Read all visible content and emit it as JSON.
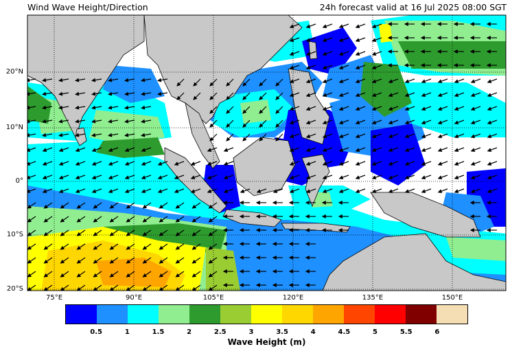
{
  "title": "Wind Wave Height/Direction",
  "forecast_label": "24h forecast valid at 16 Jul 2025 08:00 SGT",
  "lat_labels": [
    "20°N",
    "10°N",
    "0°",
    "10°S",
    "20°S"
  ],
  "lon_labels": [
    "75°E",
    "90°E",
    "105°E",
    "120°E",
    "135°E",
    "150°E"
  ],
  "colorbar": {
    "label": "Wave Height (m)",
    "ticks": [
      "0.5",
      "1",
      "1.5",
      "2",
      "2.5",
      "3",
      "3.5",
      "4",
      "4.5",
      "5",
      "5.5",
      "6"
    ],
    "colors": [
      "#0000ff",
      "#1e90ff",
      "#00ffff",
      "#90ee90",
      "#2e9b2e",
      "#9acd32",
      "#ffff00",
      "#ffd700",
      "#ffa500",
      "#ff4500",
      "#ff0000",
      "#800000",
      "#f5deb3"
    ]
  },
  "colors": {
    "land": "#c8c8c8",
    "calm_sea": "#ffffff",
    "arrow": "#000000"
  }
}
